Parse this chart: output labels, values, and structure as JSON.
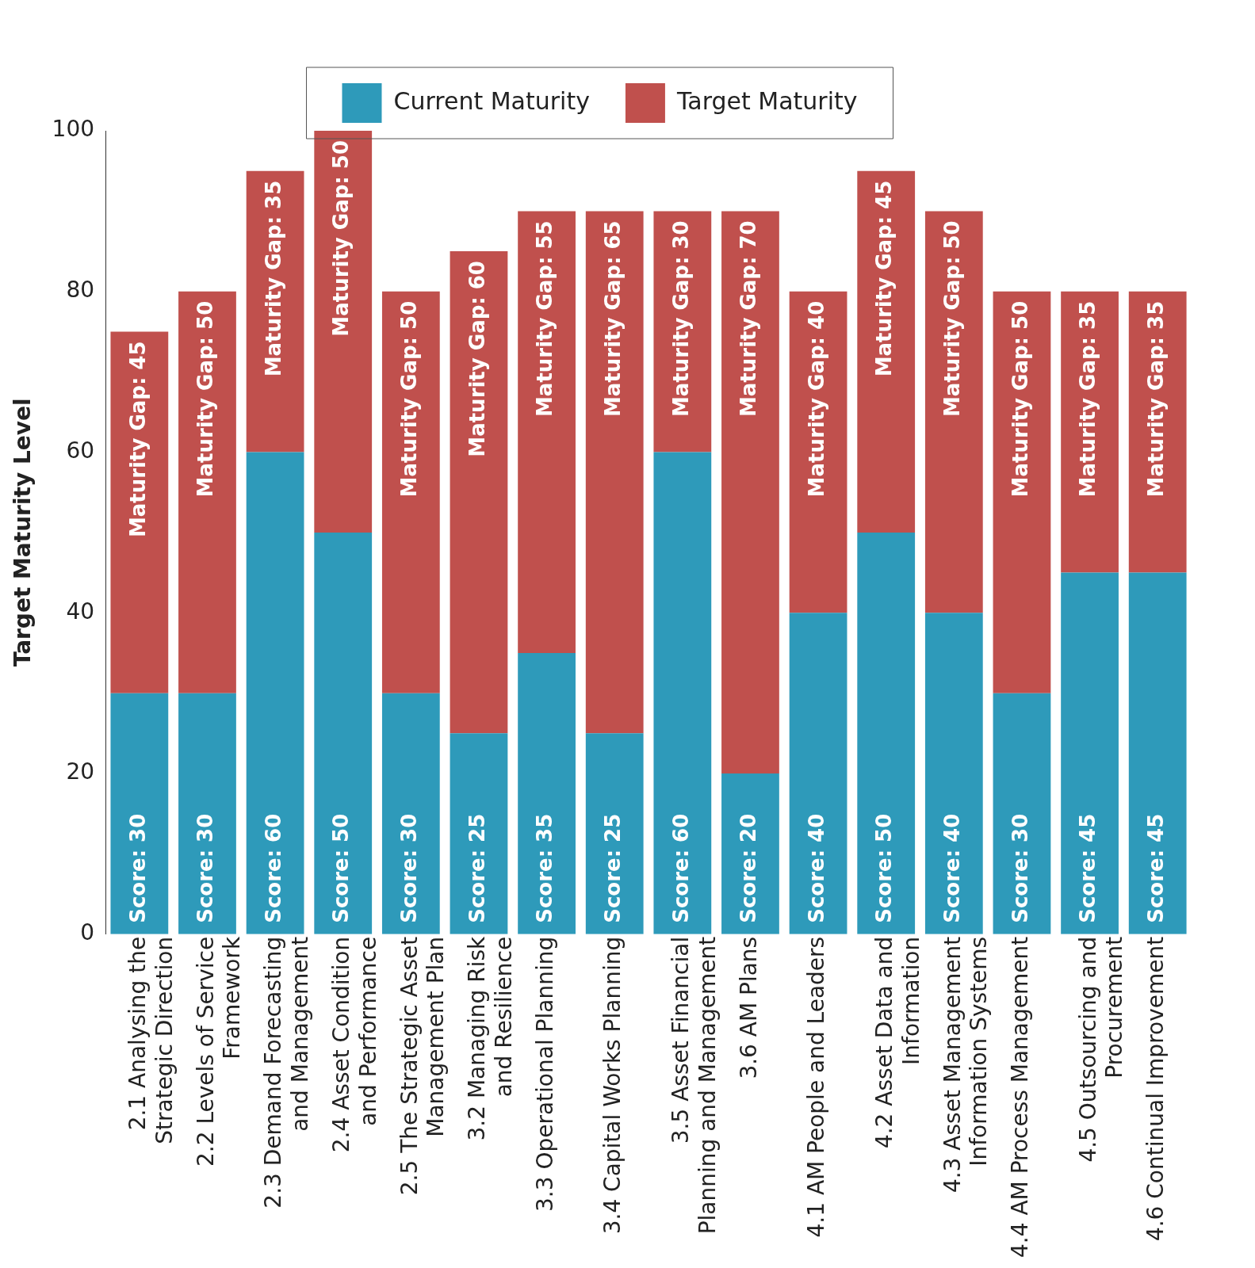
{
  "chart_data": {
    "type": "bar",
    "stacked": true,
    "ylabel": "Target Maturity Level",
    "categories": [
      "2.1 Analysing the\nStrategic Direction",
      "2.2 Levels of Service\nFramework",
      "2.3 Demand Forecasting\nand Management",
      "2.4 Asset Condition\nand Performance",
      "2.5 The Strategic Asset\nManagement Plan",
      "3.2 Managing Risk\nand Resilience",
      "3.3 Operational Planning",
      "3.4 Capital Works Planning",
      "3.5 Asset Financial\nPlanning and Management",
      "3.6 AM Plans",
      "4.1 AM People and Leaders",
      "4.2 Asset Data and\nInformation",
      "4.3 Asset Management\nInformation Systems",
      "4.4 AM Process Management",
      "4.5 Outsourcing and\nProcurement",
      "4.6 Continual Improvement"
    ],
    "series": [
      {
        "name": "Current Maturity",
        "color": "#2e9aba",
        "values": [
          30,
          30,
          60,
          50,
          30,
          25,
          35,
          25,
          60,
          20,
          40,
          50,
          40,
          30,
          45,
          45
        ],
        "value_labels": [
          "Score: 30",
          "Score: 30",
          "Score: 60",
          "Score: 50",
          "Score: 30",
          "Score: 25",
          "Score: 35",
          "Score: 25",
          "Score: 60",
          "Score: 20",
          "Score: 40",
          "Score: 50",
          "Score: 40",
          "Score: 30",
          "Score: 45",
          "Score: 45"
        ]
      },
      {
        "name": "Target Maturity",
        "color": "#c0504d",
        "values": [
          45,
          50,
          35,
          50,
          50,
          60,
          55,
          65,
          30,
          70,
          40,
          45,
          50,
          50,
          35,
          35
        ],
        "value_labels": [
          "Maturity Gap: 45",
          "Maturity Gap: 50",
          "Maturity Gap: 35",
          "Maturity Gap: 50",
          "Maturity Gap: 50",
          "Maturity Gap: 60",
          "Maturity Gap: 55",
          "Maturity Gap: 65",
          "Maturity Gap: 30",
          "Maturity Gap: 70",
          "Maturity Gap: 40",
          "Maturity Gap: 45",
          "Maturity Gap: 50",
          "Maturity Gap: 50",
          "Maturity Gap: 35",
          "Maturity Gap: 35"
        ]
      }
    ],
    "ylim": [
      0,
      100
    ],
    "yticks": [
      0,
      20,
      40,
      60,
      80,
      100
    ],
    "grid": false,
    "legend": "top"
  }
}
